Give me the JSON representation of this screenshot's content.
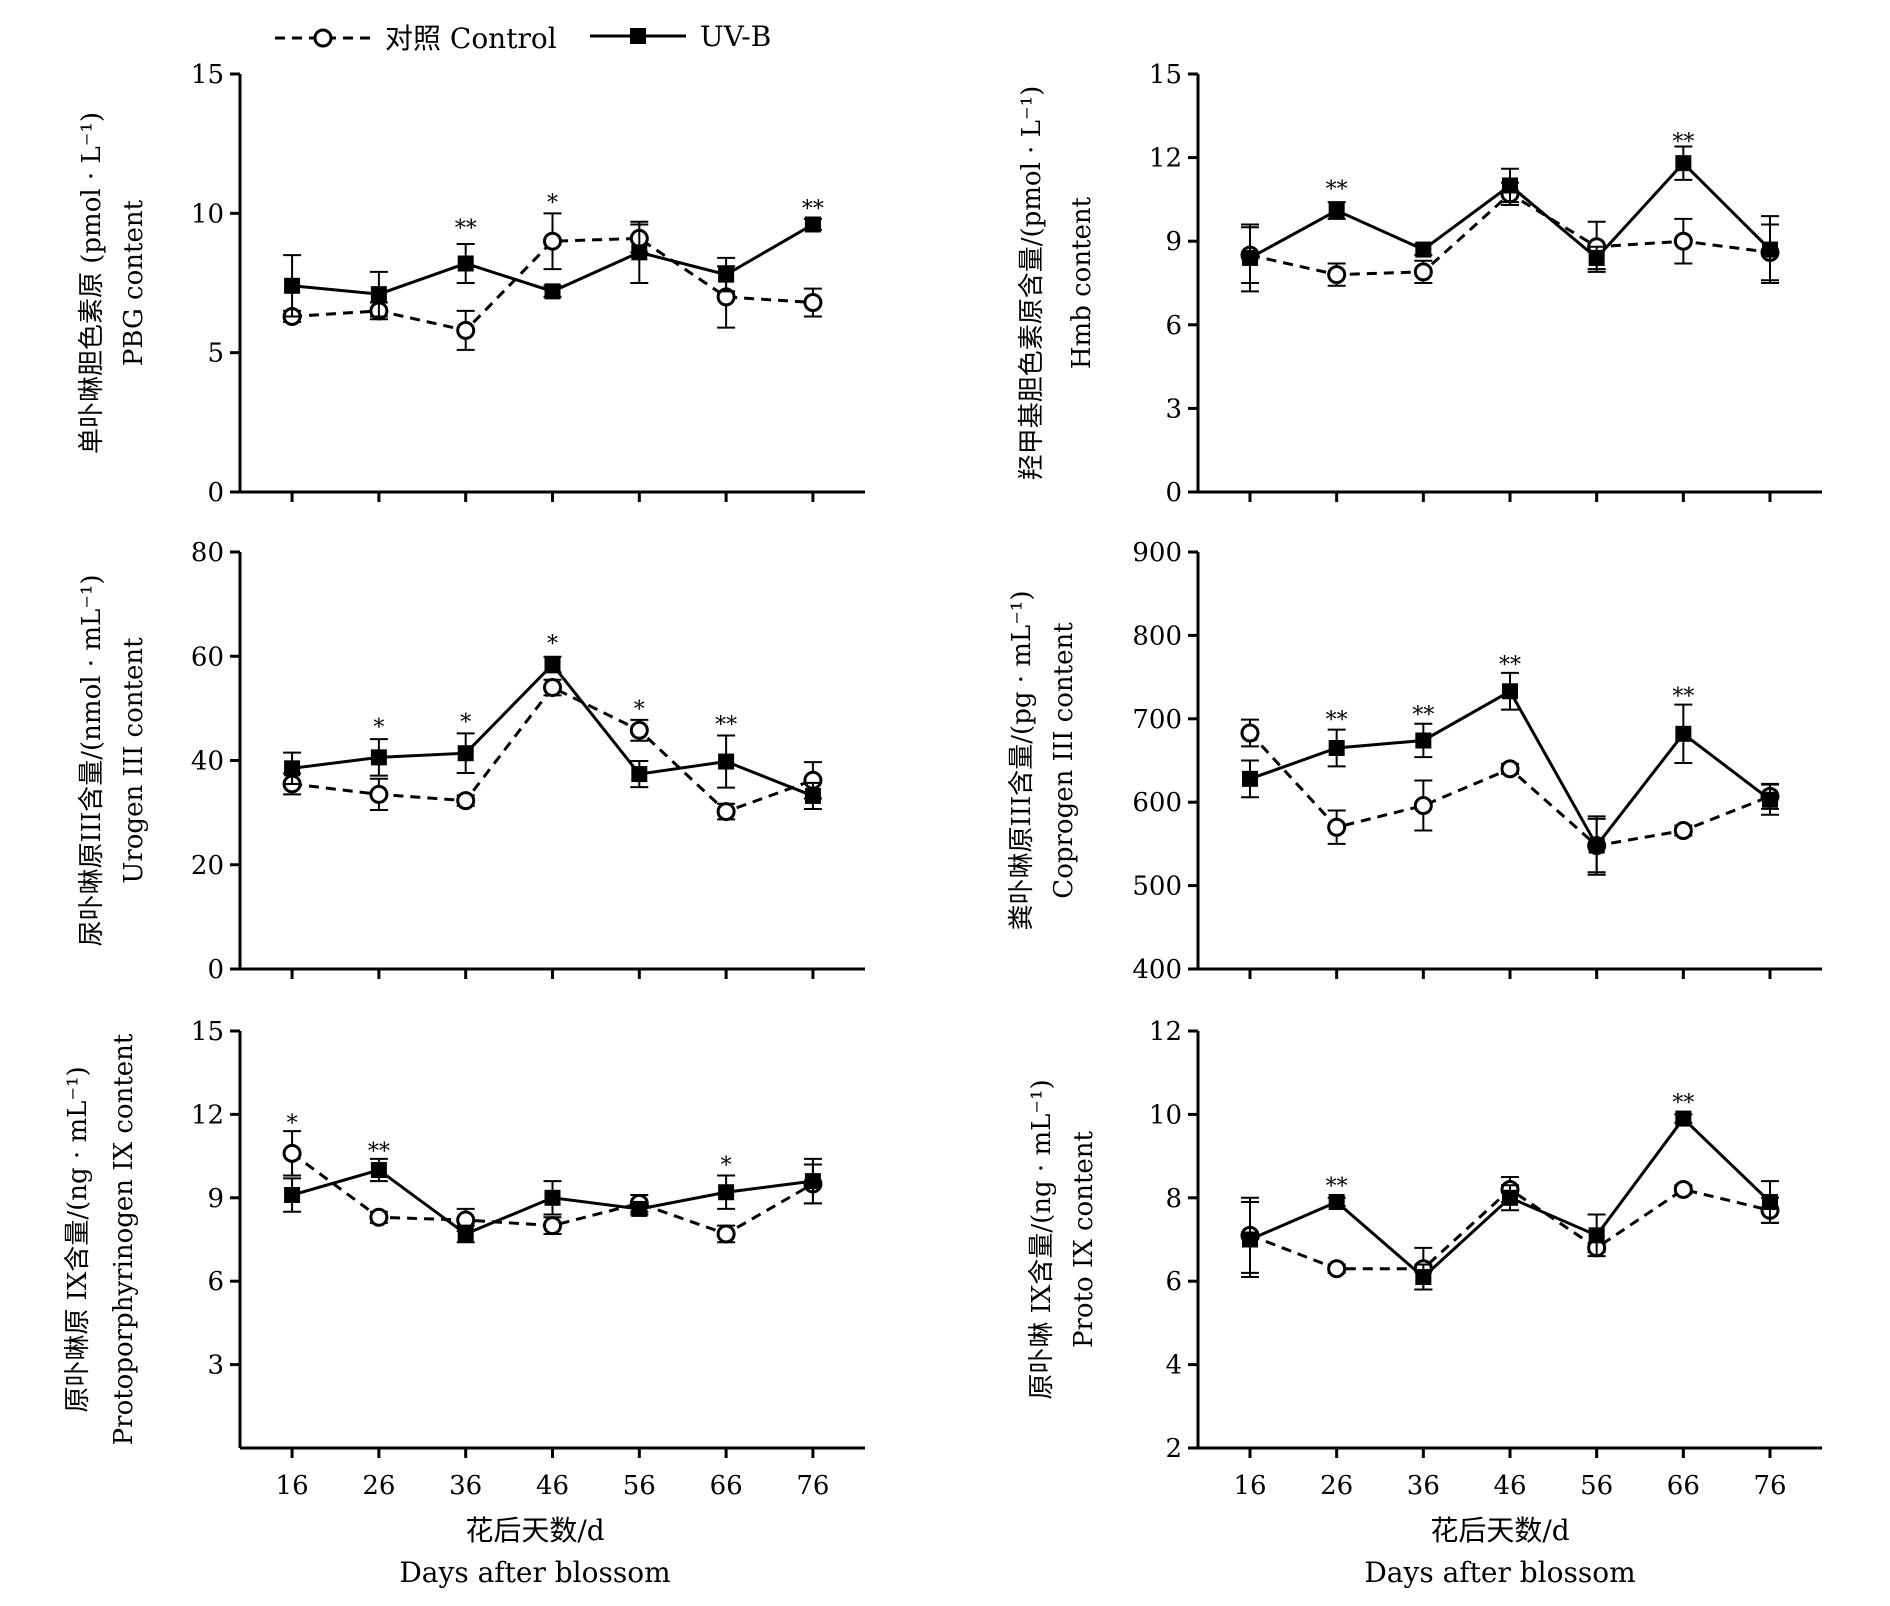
{
  "legend": {
    "control_label": "对照 Control",
    "uvb_label": "UV-B"
  },
  "x_title": {
    "line1": "花后天数/d",
    "line2": "Days after blossom"
  },
  "chart_data": [
    {
      "type": "line",
      "ylabel_line1": "单卟啉胆色素原 (pmol · L⁻¹)",
      "ylabel_line2": "PBG content",
      "x": [
        16,
        26,
        36,
        46,
        56,
        66,
        76
      ],
      "xlim": [
        10,
        82
      ],
      "ylim": [
        0,
        15
      ],
      "yticks": [
        0,
        5,
        10,
        15
      ],
      "series": [
        {
          "name": "对照 Control",
          "values": [
            6.3,
            6.5,
            5.8,
            9.0,
            9.1,
            7.0,
            6.8
          ],
          "err": [
            0.2,
            0.3,
            0.7,
            1.0,
            0.5,
            1.1,
            0.5
          ]
        },
        {
          "name": "UV-B",
          "values": [
            7.4,
            7.1,
            8.2,
            7.2,
            8.6,
            7.8,
            9.6
          ],
          "err": [
            1.1,
            0.8,
            0.7,
            0.2,
            1.1,
            0.6,
            0.2
          ]
        }
      ],
      "significance": [
        {
          "x": 36,
          "y": 9.5,
          "text": "**"
        },
        {
          "x": 46,
          "y": 10.4,
          "text": "*"
        },
        {
          "x": 76,
          "y": 10.2,
          "text": "**"
        }
      ]
    },
    {
      "type": "line",
      "ylabel_line1": "羟甲基胆色素原含量/(pmol · L⁻¹)",
      "ylabel_line2": "Hmb content",
      "x": [
        16,
        26,
        36,
        46,
        56,
        66,
        76
      ],
      "xlim": [
        10,
        82
      ],
      "ylim": [
        0,
        15
      ],
      "yticks": [
        0,
        3,
        6,
        9,
        12,
        15
      ],
      "series": [
        {
          "name": "对照 Control",
          "values": [
            8.5,
            7.8,
            7.9,
            10.7,
            8.8,
            9.0,
            8.6
          ],
          "err": [
            1.0,
            0.4,
            0.4,
            0.4,
            0.9,
            0.8,
            1.0
          ]
        },
        {
          "name": "UV-B",
          "values": [
            8.4,
            10.1,
            8.7,
            11.0,
            8.4,
            11.8,
            8.7
          ],
          "err": [
            1.2,
            0.3,
            0.2,
            0.6,
            0.4,
            0.6,
            1.2
          ]
        }
      ],
      "significance": [
        {
          "x": 26,
          "y": 10.9,
          "text": "**"
        },
        {
          "x": 66,
          "y": 12.6,
          "text": "**"
        }
      ]
    },
    {
      "type": "line",
      "ylabel_line1": "尿卟啉原III含量/(nmol · mL⁻¹)",
      "ylabel_line2": "Urogen III content",
      "x": [
        16,
        26,
        36,
        46,
        56,
        66,
        76
      ],
      "xlim": [
        10,
        82
      ],
      "ylim": [
        0,
        80
      ],
      "yticks": [
        0,
        20,
        40,
        60,
        80
      ],
      "series": [
        {
          "name": "对照 Control",
          "values": [
            35.5,
            33.5,
            32.3,
            54.0,
            45.8,
            30.2,
            36.2
          ],
          "err": [
            2.0,
            3.0,
            1.0,
            1.5,
            2.0,
            1.5,
            3.5
          ]
        },
        {
          "name": "UV-B",
          "values": [
            38.5,
            40.6,
            41.4,
            58.4,
            37.4,
            39.8,
            33.2
          ],
          "err": [
            3.0,
            3.5,
            3.8,
            1.5,
            2.5,
            5.0,
            2.5
          ]
        }
      ],
      "significance": [
        {
          "x": 26,
          "y": 46.5,
          "text": "*"
        },
        {
          "x": 36,
          "y": 47.5,
          "text": "*"
        },
        {
          "x": 46,
          "y": 62.5,
          "text": "*"
        },
        {
          "x": 56,
          "y": 50.0,
          "text": "*"
        },
        {
          "x": 66,
          "y": 47.0,
          "text": "**"
        }
      ]
    },
    {
      "type": "line",
      "ylabel_line1": "粪卟啉原III含量/(pg · mL⁻¹)",
      "ylabel_line2": "Coprogen III content",
      "x": [
        16,
        26,
        36,
        46,
        56,
        66,
        76
      ],
      "xlim": [
        10,
        82
      ],
      "ylim": [
        400,
        900
      ],
      "yticks": [
        400,
        500,
        600,
        700,
        800,
        900
      ],
      "series": [
        {
          "name": "对照 Control",
          "values": [
            683,
            570,
            596,
            640,
            548,
            566,
            607
          ],
          "err": [
            16,
            20,
            30,
            6,
            35,
            6,
            15
          ]
        },
        {
          "name": "UV-B",
          "values": [
            628,
            665,
            674,
            733,
            548,
            682,
            603
          ],
          "err": [
            22,
            22,
            20,
            22,
            32,
            35,
            18
          ]
        }
      ],
      "significance": [
        {
          "x": 26,
          "y": 700,
          "text": "**"
        },
        {
          "x": 36,
          "y": 706,
          "text": "**"
        },
        {
          "x": 46,
          "y": 766,
          "text": "**"
        },
        {
          "x": 66,
          "y": 728,
          "text": "**"
        }
      ]
    },
    {
      "type": "line",
      "ylabel_line1": "原卟啉原 IX含量/(ng · mL⁻¹)",
      "ylabel_line2": "Protoporphyrinogen IX content",
      "x": [
        16,
        26,
        36,
        46,
        56,
        66,
        76
      ],
      "xlim": [
        10,
        82
      ],
      "ylim": [
        0,
        15
      ],
      "yticks": [
        3,
        6,
        9,
        12,
        15
      ],
      "series": [
        {
          "name": "对照 Control",
          "values": [
            10.6,
            8.3,
            8.2,
            8.0,
            8.8,
            7.7,
            9.5
          ],
          "err": [
            0.8,
            0.2,
            0.4,
            0.3,
            0.3,
            0.3,
            0.7
          ]
        },
        {
          "name": "UV-B",
          "values": [
            9.1,
            10.0,
            7.7,
            9.0,
            8.6,
            9.2,
            9.6
          ],
          "err": [
            0.6,
            0.4,
            0.3,
            0.6,
            0.2,
            0.6,
            0.8
          ]
        }
      ],
      "significance": [
        {
          "x": 16,
          "y": 11.7,
          "text": "*"
        },
        {
          "x": 26,
          "y": 10.7,
          "text": "**"
        },
        {
          "x": 66,
          "y": 10.2,
          "text": "*"
        }
      ]
    },
    {
      "type": "line",
      "ylabel_line1": "原卟啉 IX含量/(ng · mL⁻¹)",
      "ylabel_line2": "Proto IX content",
      "x": [
        16,
        26,
        36,
        46,
        56,
        66,
        76
      ],
      "xlim": [
        10,
        82
      ],
      "ylim": [
        2,
        12
      ],
      "yticks": [
        2,
        4,
        6,
        8,
        10,
        12
      ],
      "series": [
        {
          "name": "对照 Control",
          "values": [
            7.1,
            6.3,
            6.3,
            8.2,
            6.8,
            8.2,
            7.7
          ],
          "err": [
            0.9,
            0.1,
            0.5,
            0.3,
            0.1,
            0.1,
            0.3
          ]
        },
        {
          "name": "UV-B",
          "values": [
            7.0,
            7.9,
            6.1,
            8.0,
            7.1,
            9.9,
            7.9
          ],
          "err": [
            0.9,
            0.1,
            0.3,
            0.3,
            0.5,
            0.1,
            0.5
          ]
        }
      ],
      "significance": [
        {
          "x": 26,
          "y": 8.3,
          "text": "**"
        },
        {
          "x": 66,
          "y": 10.3,
          "text": "**"
        }
      ]
    }
  ]
}
